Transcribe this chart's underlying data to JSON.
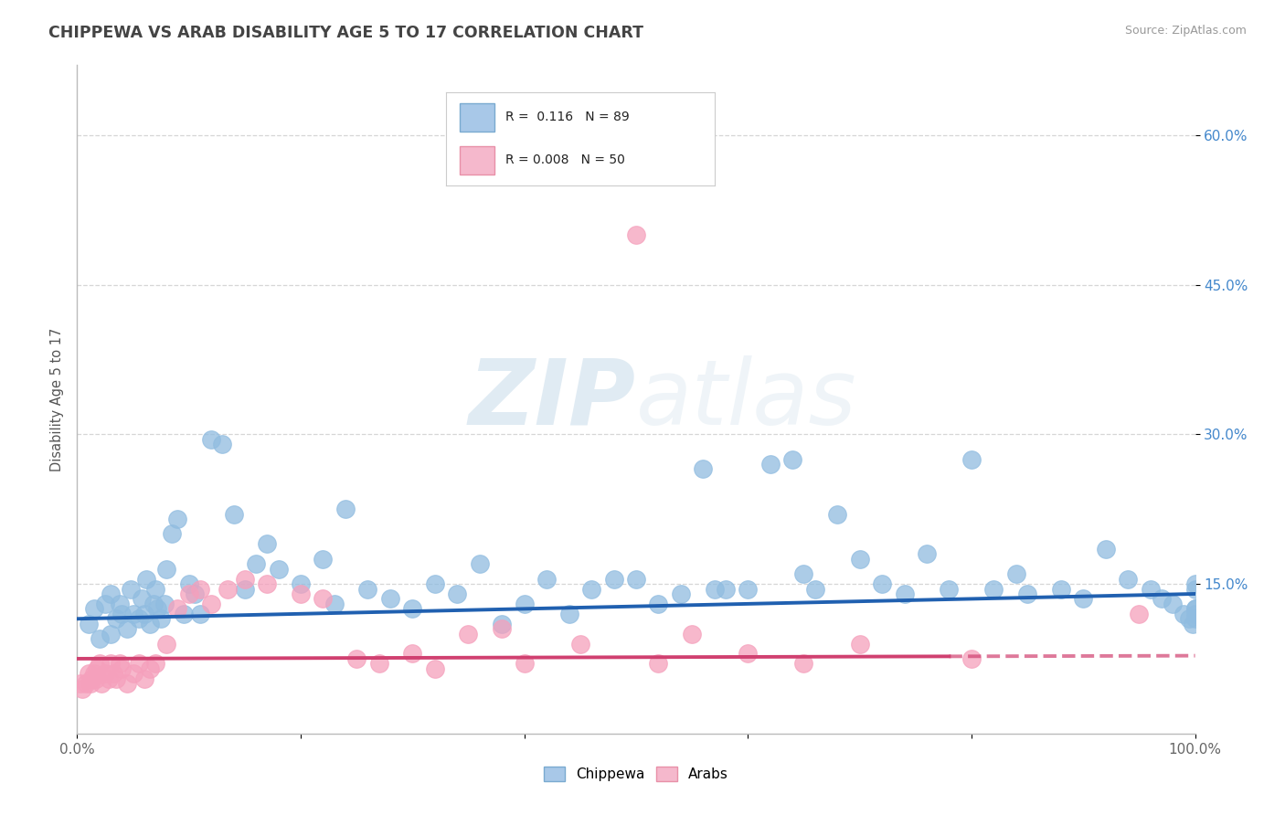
{
  "title": "CHIPPEWA VS ARAB DISABILITY AGE 5 TO 17 CORRELATION CHART",
  "source_text": "Source: ZipAtlas.com",
  "ylabel": "Disability Age 5 to 17",
  "xlim": [
    0,
    100
  ],
  "ylim": [
    0,
    67
  ],
  "y_tick_labels": [
    "15.0%",
    "30.0%",
    "45.0%",
    "60.0%"
  ],
  "y_tick_values": [
    15,
    30,
    45,
    60
  ],
  "bottom_legend": [
    "Chippewa",
    "Arabs"
  ],
  "bottom_legend_colors": [
    "#a8c8e8",
    "#f5b8cc"
  ],
  "chippewa_color": "#90bce0",
  "arab_color": "#f5a0bc",
  "trend_chippewa_color": "#2060b0",
  "trend_arab_color": "#d04070",
  "background_color": "#ffffff",
  "watermark_color": "#dce8f0",
  "chippewa_R": 0.116,
  "chippewa_N": 89,
  "arab_R": 0.008,
  "arab_N": 50,
  "trend_chippewa_x0": 0,
  "trend_chippewa_y0": 11.5,
  "trend_chippewa_x1": 100,
  "trend_chippewa_y1": 14.0,
  "trend_arab_x0": 0,
  "trend_arab_y0": 7.5,
  "trend_arab_x1": 100,
  "trend_arab_y1": 7.8,
  "trend_arab_solid_end": 78,
  "chippewa_x": [
    1.0,
    1.5,
    2.0,
    2.5,
    3.0,
    3.0,
    3.5,
    3.8,
    4.0,
    4.5,
    4.8,
    5.0,
    5.5,
    5.8,
    6.0,
    6.2,
    6.5,
    6.8,
    7.0,
    7.2,
    7.5,
    7.8,
    8.0,
    8.5,
    9.0,
    9.5,
    10.0,
    10.5,
    11.0,
    12.0,
    13.0,
    14.0,
    15.0,
    16.0,
    17.0,
    18.0,
    20.0,
    22.0,
    23.0,
    24.0,
    26.0,
    28.0,
    30.0,
    32.0,
    34.0,
    36.0,
    38.0,
    40.0,
    42.0,
    44.0,
    46.0,
    48.0,
    50.0,
    52.0,
    54.0,
    56.0,
    57.0,
    58.0,
    60.0,
    62.0,
    64.0,
    65.0,
    66.0,
    68.0,
    70.0,
    72.0,
    74.0,
    76.0,
    78.0,
    80.0,
    82.0,
    84.0,
    85.0,
    88.0,
    90.0,
    92.0,
    94.0,
    96.0,
    97.0,
    98.0,
    99.0,
    99.5,
    99.8,
    100.0,
    100.0,
    100.0,
    100.0,
    100.0,
    100.0
  ],
  "chippewa_y": [
    11.0,
    12.5,
    9.5,
    13.0,
    10.0,
    14.0,
    11.5,
    13.0,
    12.0,
    10.5,
    14.5,
    12.0,
    11.5,
    13.5,
    12.0,
    15.5,
    11.0,
    13.0,
    14.5,
    12.5,
    11.5,
    13.0,
    16.5,
    20.0,
    21.5,
    12.0,
    15.0,
    14.0,
    12.0,
    29.5,
    29.0,
    22.0,
    14.5,
    17.0,
    19.0,
    16.5,
    15.0,
    17.5,
    13.0,
    22.5,
    14.5,
    13.5,
    12.5,
    15.0,
    14.0,
    17.0,
    11.0,
    13.0,
    15.5,
    12.0,
    14.5,
    15.5,
    15.5,
    13.0,
    14.0,
    26.5,
    14.5,
    14.5,
    14.5,
    27.0,
    27.5,
    16.0,
    14.5,
    22.0,
    17.5,
    15.0,
    14.0,
    18.0,
    14.5,
    27.5,
    14.5,
    16.0,
    14.0,
    14.5,
    13.5,
    18.5,
    15.5,
    14.5,
    13.5,
    13.0,
    12.0,
    11.5,
    11.0,
    12.5,
    14.5,
    15.0,
    12.0,
    11.5,
    12.5
  ],
  "arab_x": [
    0.3,
    0.5,
    0.8,
    1.0,
    1.2,
    1.3,
    1.5,
    1.7,
    1.8,
    2.0,
    2.2,
    2.5,
    2.8,
    3.0,
    3.2,
    3.5,
    3.8,
    4.0,
    4.5,
    5.0,
    5.5,
    6.0,
    6.5,
    7.0,
    8.0,
    9.0,
    10.0,
    11.0,
    12.0,
    13.5,
    15.0,
    17.0,
    20.0,
    22.0,
    25.0,
    27.0,
    30.0,
    32.0,
    35.0,
    38.0,
    40.0,
    45.0,
    50.0,
    52.0,
    55.0,
    60.0,
    65.0,
    70.0,
    80.0,
    95.0
  ],
  "arab_y": [
    5.0,
    4.5,
    5.0,
    6.0,
    5.0,
    5.5,
    6.0,
    5.5,
    6.5,
    7.0,
    5.0,
    6.0,
    5.5,
    7.0,
    6.0,
    5.5,
    7.0,
    6.5,
    5.0,
    6.0,
    7.0,
    5.5,
    6.5,
    7.0,
    9.0,
    12.5,
    14.0,
    14.5,
    13.0,
    14.5,
    15.5,
    15.0,
    14.0,
    13.5,
    7.5,
    7.0,
    8.0,
    6.5,
    10.0,
    10.5,
    7.0,
    9.0,
    50.0,
    7.0,
    10.0,
    8.0,
    7.0,
    9.0,
    7.5,
    12.0
  ]
}
